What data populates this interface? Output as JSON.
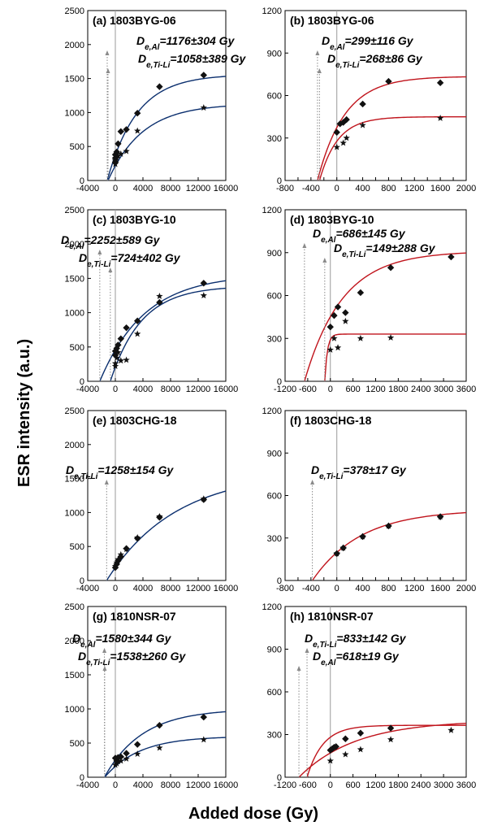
{
  "figure": {
    "ylabel": "ESR intensity (a.u.)",
    "xlabel": "Added dose (Gy)",
    "colors": {
      "al": "#0b2f6e",
      "ti": "#c0141c",
      "zero_line": "#9a9a9a",
      "extrap": "#8a8a8a"
    }
  },
  "chart_data": [
    {
      "id": "a",
      "type": "scatter",
      "title": "(a) 1803BYG-06",
      "curve_color": "blue",
      "xlim": [
        -4000,
        16000
      ],
      "ylim": [
        0,
        2500
      ],
      "xticks": [
        -4000,
        0,
        4000,
        8000,
        12000,
        16000
      ],
      "yticks": [
        0,
        500,
        1000,
        1500,
        2000,
        2500
      ],
      "de_labels": [
        {
          "main": "D",
          "sub": "e,Al",
          "text": "=1176±304 Gy"
        },
        {
          "main": "D",
          "sub": "e,Ti-Li",
          "text": "=1058±389 Gy"
        }
      ],
      "series": [
        {
          "marker": "diamond",
          "x": [
            0,
            0,
            0,
            200,
            400,
            800,
            1600,
            3200,
            6400,
            12800
          ],
          "y": [
            270,
            330,
            380,
            420,
            540,
            720,
            750,
            990,
            1380,
            1550
          ],
          "fit": {
            "de": 1176,
            "sat": 1560,
            "d0": 4300
          }
        },
        {
          "marker": "star",
          "x": [
            0,
            0,
            200,
            400,
            800,
            1600,
            3200,
            12800
          ],
          "y": [
            240,
            290,
            330,
            360,
            390,
            430,
            730,
            1070
          ],
          "fit": {
            "de": 1058,
            "sat": 1130,
            "d0": 5000
          }
        }
      ]
    },
    {
      "id": "b",
      "type": "scatter",
      "title": "(b) 1803BYG-06",
      "curve_color": "red",
      "xlim": [
        -800,
        2000
      ],
      "ylim": [
        0,
        1200
      ],
      "xticks": [
        -800,
        -600,
        -400,
        -200,
        0,
        200,
        400,
        600,
        800,
        1000,
        1200,
        1400,
        1600,
        1800,
        2000
      ],
      "yticks": [
        0,
        300,
        600,
        900,
        1200
      ],
      "de_labels": [
        {
          "main": "D",
          "sub": "e,Al",
          "text": "=299±116 Gy"
        },
        {
          "main": "D",
          "sub": "e,Ti-Li",
          "text": "=268±86 Gy"
        }
      ],
      "series": [
        {
          "marker": "diamond",
          "x": [
            0,
            50,
            100,
            150,
            400,
            800,
            1600
          ],
          "y": [
            340,
            400,
            410,
            430,
            540,
            700,
            690
          ],
          "fit": {
            "de": 299,
            "sat": 735,
            "d0": 420
          }
        },
        {
          "marker": "star",
          "x": [
            0,
            100,
            150,
            400,
            1600
          ],
          "y": [
            235,
            265,
            300,
            390,
            440
          ],
          "fit": {
            "de": 268,
            "sat": 450,
            "d0": 280
          }
        }
      ]
    },
    {
      "id": "c",
      "type": "scatter",
      "title": "(c) 1803BYG-10",
      "curve_color": "blue",
      "xlim": [
        -4000,
        16000
      ],
      "ylim": [
        0,
        2500
      ],
      "xticks": [
        -4000,
        0,
        4000,
        8000,
        12000,
        16000
      ],
      "yticks": [
        0,
        500,
        1000,
        1500,
        2000,
        2500
      ],
      "de_labels": [
        {
          "main": "D",
          "sub": "e,Al",
          "text": "=2252±589 Gy"
        },
        {
          "main": "D",
          "sub": "e,Ti-Li",
          "text": "=724±402 Gy"
        }
      ],
      "series": [
        {
          "marker": "diamond",
          "x": [
            0,
            0,
            200,
            400,
            800,
            1600,
            3200,
            6400,
            12800
          ],
          "y": [
            380,
            440,
            480,
            530,
            620,
            780,
            880,
            1150,
            1430
          ],
          "fit": {
            "de": 2252,
            "sat": 1560,
            "d0": 6500
          }
        },
        {
          "marker": "star",
          "x": [
            0,
            0,
            200,
            400,
            800,
            1600,
            3200,
            6400,
            12800
          ],
          "y": [
            220,
            260,
            340,
            420,
            300,
            310,
            690,
            1240,
            1250
          ],
          "fit": {
            "de": 724,
            "sat": 1390,
            "d0": 4500
          }
        }
      ]
    },
    {
      "id": "d",
      "type": "scatter",
      "title": "(d) 1803BYG-10",
      "curve_color": "red",
      "xlim": [
        -1200,
        3600
      ],
      "ylim": [
        0,
        1200
      ],
      "xticks": [
        -1200,
        -600,
        0,
        600,
        1200,
        1800,
        2400,
        3000,
        3600
      ],
      "yticks": [
        0,
        300,
        600,
        900,
        1200
      ],
      "de_labels": [
        {
          "main": "D",
          "sub": "e,Al",
          "text": "=686±145 Gy"
        },
        {
          "main": "D",
          "sub": "e,Ti-Li",
          "text": "=149±288 Gy"
        }
      ],
      "series": [
        {
          "marker": "diamond",
          "x": [
            0,
            100,
            200,
            400,
            800,
            1600,
            3200
          ],
          "y": [
            380,
            460,
            520,
            480,
            620,
            795,
            870
          ],
          "fit": {
            "de": 686,
            "sat": 910,
            "d0": 1000
          }
        },
        {
          "marker": "star",
          "x": [
            0,
            100,
            200,
            400,
            800,
            1600
          ],
          "y": [
            220,
            300,
            235,
            420,
            300,
            305
          ],
          "fit": {
            "de": 149,
            "sat": 330,
            "d0": 70
          }
        }
      ]
    },
    {
      "id": "e",
      "type": "scatter",
      "title": "(e) 1803CHG-18",
      "curve_color": "blue",
      "xlim": [
        -4000,
        16000
      ],
      "ylim": [
        0,
        2500
      ],
      "xticks": [
        -4000,
        0,
        4000,
        8000,
        12000,
        16000
      ],
      "yticks": [
        0,
        500,
        1000,
        1500,
        2000,
        2500
      ],
      "de_labels": [
        {
          "main": "D",
          "sub": "e,Ti-Li",
          "text": "=1258±154 Gy"
        }
      ],
      "series": [
        {
          "marker": "diamond",
          "x": [
            0,
            200,
            400,
            800,
            1600,
            3200,
            6400,
            12800
          ],
          "y": [
            190,
            240,
            290,
            350,
            470,
            620,
            930,
            1190
          ],
          "fit": {
            "de": 1258,
            "sat": 1600,
            "d0": 10000
          }
        },
        {
          "marker": "star",
          "x": [
            0,
            200,
            400,
            800,
            1600,
            3200,
            6400,
            12800
          ],
          "y": [
            210,
            260,
            310,
            380,
            460,
            630,
            940,
            1200
          ],
          "fit": {
            "de": 1258,
            "sat": 1600,
            "d0": 10000
          }
        }
      ]
    },
    {
      "id": "f",
      "type": "scatter",
      "title": "(f) 1803CHG-18",
      "curve_color": "red",
      "xlim": [
        -800,
        2000
      ],
      "ylim": [
        0,
        1200
      ],
      "xticks": [
        -800,
        -600,
        -400,
        -200,
        0,
        200,
        400,
        600,
        800,
        1000,
        1200,
        1400,
        1600,
        1800,
        2000
      ],
      "yticks": [
        0,
        300,
        600,
        900,
        1200
      ],
      "de_labels": [
        {
          "main": "D",
          "sub": "e,Ti-Li",
          "text": "=378±17 Gy"
        }
      ],
      "series": [
        {
          "marker": "diamond",
          "x": [
            0,
            100,
            400,
            800,
            1600
          ],
          "y": [
            190,
            230,
            310,
            385,
            450
          ],
          "fit": {
            "de": 378,
            "sat": 500,
            "d0": 750
          }
        },
        {
          "marker": "star",
          "x": [
            0,
            100,
            400,
            800,
            1600
          ],
          "y": [
            190,
            230,
            310,
            385,
            450
          ],
          "fit": {
            "de": 378,
            "sat": 500,
            "d0": 750
          }
        }
      ]
    },
    {
      "id": "g",
      "type": "scatter",
      "title": "(g) 1810NSR-07",
      "curve_color": "blue",
      "xlim": [
        -4000,
        16000
      ],
      "ylim": [
        0,
        2500
      ],
      "xticks": [
        -4000,
        0,
        4000,
        8000,
        12000,
        16000
      ],
      "yticks": [
        0,
        500,
        1000,
        1500,
        2000,
        2500
      ],
      "de_labels": [
        {
          "main": "D",
          "sub": "e,Al",
          "text": "=1580±344 Gy"
        },
        {
          "main": "D",
          "sub": "e,Ti-Li",
          "text": "=1538±260 Gy"
        }
      ],
      "series": [
        {
          "marker": "diamond",
          "x": [
            0,
            200,
            400,
            800,
            1600,
            3200,
            6400,
            12800
          ],
          "y": [
            280,
            240,
            290,
            300,
            350,
            480,
            760,
            880
          ],
          "fit": {
            "de": 1580,
            "sat": 1000,
            "d0": 5500
          }
        },
        {
          "marker": "star",
          "x": [
            0,
            200,
            400,
            800,
            1600,
            3200,
            6400,
            12800
          ],
          "y": [
            180,
            200,
            230,
            240,
            270,
            340,
            430,
            550
          ],
          "fit": {
            "de": 1538,
            "sat": 600,
            "d0": 5000
          }
        }
      ]
    },
    {
      "id": "h",
      "type": "scatter",
      "title": "(h) 1810NSR-07",
      "curve_color": "red",
      "xlim": [
        -1200,
        3600
      ],
      "ylim": [
        0,
        1200
      ],
      "xticks": [
        -1200,
        -600,
        0,
        600,
        1200,
        1800,
        2400,
        3000,
        3600
      ],
      "yticks": [
        0,
        300,
        600,
        900,
        1200
      ],
      "de_labels": [
        {
          "main": "D",
          "sub": "e,Ti-Li",
          "text": "=833±142 Gy"
        },
        {
          "main": "D",
          "sub": "e,Al",
          "text": "=618±19 Gy"
        }
      ],
      "series": [
        {
          "marker": "diamond",
          "x": [
            0,
            50,
            100,
            150,
            400,
            800,
            1600
          ],
          "y": [
            190,
            200,
            210,
            215,
            270,
            310,
            345
          ],
          "fit": {
            "de": 618,
            "sat": 365,
            "d0": 420
          }
        },
        {
          "marker": "star",
          "x": [
            0,
            400,
            800,
            1600,
            3200
          ],
          "y": [
            115,
            160,
            195,
            265,
            330
          ],
          "fit": {
            "de": 833,
            "sat": 400,
            "d0": 1500
          }
        }
      ]
    }
  ]
}
